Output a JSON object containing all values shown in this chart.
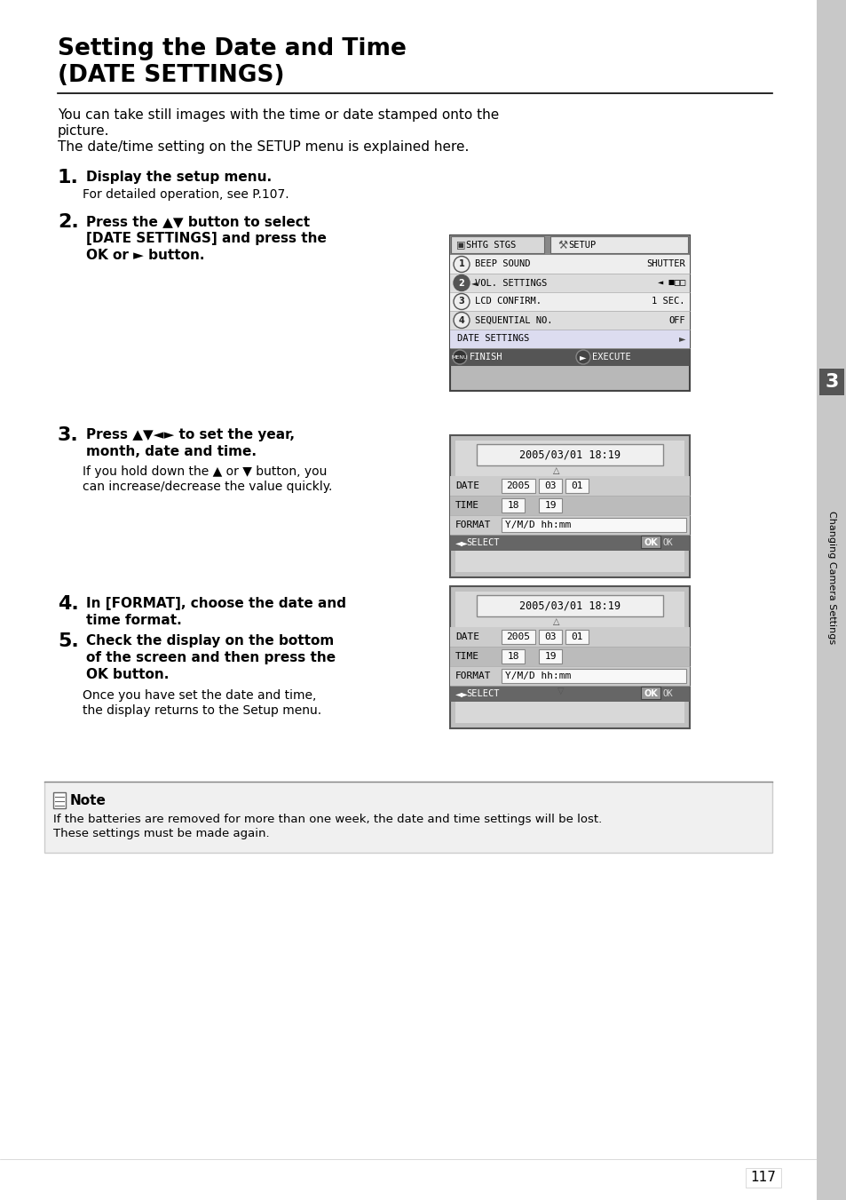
{
  "title_line1": "Setting the Date and Time",
  "title_line2": "(DATE SETTINGS)",
  "intro_line1": "You can take still images with the time or date stamped onto the",
  "intro_line2": "picture.",
  "intro_line3": "The date/time setting on the SETUP menu is explained here.",
  "step1_num": "1.",
  "step1_bold": "Display the setup menu.",
  "step1_sub": "For detailed operation, see P.107.",
  "step2_num": "2.",
  "step2_bold_lines": [
    "Press the ▲▼ button to select",
    "[DATE SETTINGS] and press the",
    "OK or ► button."
  ],
  "step3_num": "3.",
  "step3_bold_lines": [
    "Press ▲▼◄► to set the year,",
    "month, date and time."
  ],
  "step3_sub_lines": [
    "If you hold down the ▲ or ▼ button, you",
    "can increase/decrease the value quickly."
  ],
  "step4_num": "4.",
  "step4_bold_lines": [
    "In [FORMAT], choose the date and",
    "time format."
  ],
  "step5_num": "5.",
  "step5_bold_lines": [
    "Check the display on the bottom",
    "of the screen and then press the",
    "OK button."
  ],
  "step5_sub_lines": [
    "Once you have set the date and time,",
    "the display returns to the Setup menu."
  ],
  "note_title": "Note",
  "note_text_lines": [
    "If the batteries are removed for more than one week, the date and time settings will be lost.",
    "These settings must be made again."
  ],
  "page_number": "117",
  "sidebar_text": "Changing Camera Settings",
  "sidebar_number": "3",
  "bg_color": "#ffffff",
  "text_color": "#000000",
  "screen1_menu_rows": [
    [
      "1",
      "BEEP SOUND",
      "SHUTTER"
    ],
    [
      "2",
      "VOL. SETTINGS",
      "◄ ■□□"
    ],
    [
      "3",
      "LCD CONFIRM.",
      "1 SEC."
    ],
    [
      "4",
      "SEQUENTIAL NO.",
      "OFF"
    ],
    [
      "",
      "DATE SETTINGS",
      ""
    ]
  ],
  "screen_date": "2005/03/01 18:19"
}
